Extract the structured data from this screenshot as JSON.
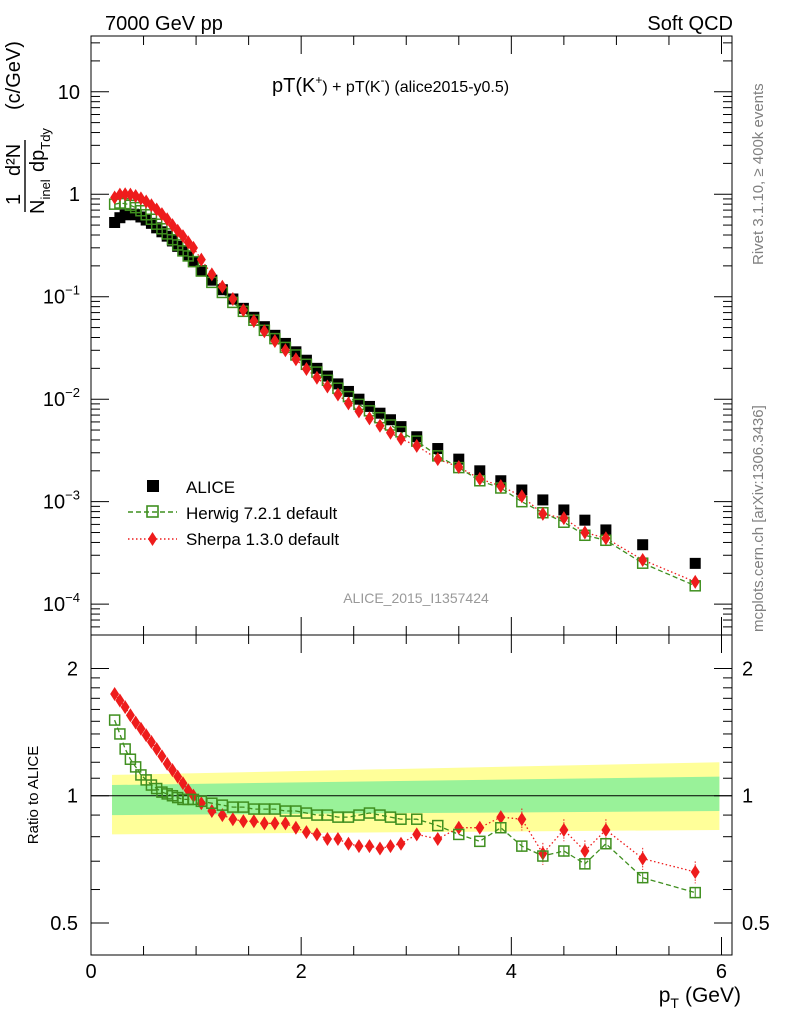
{
  "header": {
    "left": "7000 GeV pp",
    "right": "Soft QCD",
    "title": "pT(K",
    "title_sup1": "+",
    "title_mid": ") + pT(K",
    "title_sup2": "-",
    "title_end": ") (alice2015-y0.5)",
    "side_rivet": "Rivet 3.1.10, ≥ 400k events",
    "side_mcplots": "mcplots.cern.ch [arXiv:1306.3436]",
    "analysis_id": "ALICE_2015_I1357424"
  },
  "axes": {
    "main_ylabel_num": "1",
    "main_ylabel_den": "N",
    "main_ylabel_den_sub": "inel",
    "main_ylabel_mid": "d²N",
    "main_ylabel_dp": "dp",
    "main_ylabel_dp_sub": "Tdy",
    "main_ylabel_units": "(c/GeV)",
    "ratio_ylabel": "Ratio to ALICE",
    "xlabel_main": "p",
    "xlabel_sub": "T",
    "xlabel_units": "(GeV)",
    "main_yticks": [
      {
        "base": "10",
        "exp": "",
        "value": 10
      },
      {
        "base": "1",
        "exp": "",
        "value": 1
      },
      {
        "base": "10",
        "exp": "−1",
        "value": 0.1
      },
      {
        "base": "10",
        "exp": "−2",
        "value": 0.01
      },
      {
        "base": "10",
        "exp": "−3",
        "value": 0.001
      },
      {
        "base": "10",
        "exp": "−4",
        "value": 0.0001
      }
    ],
    "ratio_yticks": [
      "2",
      "1",
      "0.5"
    ],
    "xticks": [
      "0",
      "2",
      "4",
      "6"
    ]
  },
  "legend": {
    "alice": "ALICE",
    "herwig": "Herwig 7.2.1 default",
    "sherpa": "Sherpa 1.3.0 default"
  },
  "colors": {
    "alice": "#000000",
    "herwig": "#3f8f1f",
    "sherpa": "#ee1c1c",
    "band_outer": "#ffff99",
    "band_inner": "#99f299"
  },
  "chart_data": {
    "type": "scatter",
    "title": "pT(K+) + pT(K-) (alice2015-y0.5)",
    "xlabel": "pT (GeV)",
    "ylabel": "1/Ninel d2N/dpTdy (c/GeV)",
    "xlim": [
      0,
      6.1
    ],
    "ylim": [
      5e-05,
      35
    ],
    "yscale": "log",
    "ratio_ylim": [
      0.42,
      2.4
    ],
    "x": [
      0.225,
      0.275,
      0.325,
      0.375,
      0.425,
      0.475,
      0.525,
      0.575,
      0.625,
      0.675,
      0.725,
      0.775,
      0.825,
      0.875,
      0.925,
      0.975,
      1.05,
      1.15,
      1.25,
      1.35,
      1.45,
      1.55,
      1.65,
      1.75,
      1.85,
      1.95,
      2.05,
      2.15,
      2.25,
      2.35,
      2.45,
      2.55,
      2.65,
      2.75,
      2.85,
      2.95,
      3.1,
      3.3,
      3.5,
      3.7,
      3.9,
      4.1,
      4.3,
      4.5,
      4.7,
      4.9,
      5.25,
      5.75
    ],
    "series": [
      {
        "name": "ALICE",
        "values": [
          0.53,
          0.59,
          0.63,
          0.64,
          0.63,
          0.6,
          0.56,
          0.52,
          0.47,
          0.43,
          0.39,
          0.35,
          0.31,
          0.28,
          0.25,
          0.22,
          0.18,
          0.145,
          0.117,
          0.095,
          0.077,
          0.063,
          0.051,
          0.042,
          0.035,
          0.029,
          0.024,
          0.02,
          0.0168,
          0.0141,
          0.0119,
          0.01,
          0.0085,
          0.0073,
          0.0063,
          0.0054,
          0.0043,
          0.0033,
          0.0026,
          0.002,
          0.0016,
          0.0013,
          0.00104,
          0.00083,
          0.00066,
          0.00053,
          0.00038,
          0.00025
        ]
      },
      {
        "name": "Herwig 7.2.1 default",
        "values": [
          0.8,
          0.82,
          0.81,
          0.78,
          0.74,
          0.69,
          0.63,
          0.57,
          0.51,
          0.46,
          0.41,
          0.36,
          0.32,
          0.28,
          0.25,
          0.22,
          0.178,
          0.138,
          0.11,
          0.088,
          0.072,
          0.059,
          0.047,
          0.039,
          0.032,
          0.027,
          0.0219,
          0.0184,
          0.0153,
          0.0128,
          0.0106,
          0.0089,
          0.0077,
          0.0066,
          0.0056,
          0.0048,
          0.0039,
          0.0028,
          0.00215,
          0.0016,
          0.00136,
          0.001,
          0.00078,
          0.00063,
          0.00047,
          0.00042,
          0.000251,
          0.000151
        ]
      },
      {
        "name": "Sherpa 1.3.0 default",
        "values": [
          0.93,
          0.99,
          1.0,
          0.99,
          0.96,
          0.91,
          0.85,
          0.78,
          0.71,
          0.64,
          0.57,
          0.5,
          0.44,
          0.39,
          0.34,
          0.3,
          0.23,
          0.165,
          0.125,
          0.095,
          0.074,
          0.058,
          0.046,
          0.037,
          0.03,
          0.0245,
          0.0197,
          0.0162,
          0.0133,
          0.0111,
          0.0091,
          0.0076,
          0.0065,
          0.0055,
          0.0047,
          0.0041,
          0.0035,
          0.0026,
          0.00218,
          0.00167,
          0.00142,
          0.00113,
          0.00076,
          0.00069,
          0.0005,
          0.00044,
          0.00027,
          0.000165
        ]
      }
    ],
    "ratio": {
      "Herwig 7.2.1 default": [
        1.51,
        1.4,
        1.29,
        1.22,
        1.17,
        1.12,
        1.09,
        1.06,
        1.04,
        1.02,
        1.01,
        1.0,
        0.99,
        0.98,
        0.98,
        0.98,
        0.97,
        0.96,
        0.95,
        0.94,
        0.94,
        0.93,
        0.93,
        0.93,
        0.92,
        0.92,
        0.91,
        0.9,
        0.9,
        0.89,
        0.89,
        0.9,
        0.91,
        0.9,
        0.89,
        0.88,
        0.88,
        0.85,
        0.81,
        0.78,
        0.84,
        0.76,
        0.72,
        0.74,
        0.69,
        0.77,
        0.64,
        0.59
      ],
      "Sherpa 1.3.0 default": [
        1.74,
        1.68,
        1.62,
        1.55,
        1.49,
        1.44,
        1.39,
        1.34,
        1.29,
        1.24,
        1.19,
        1.15,
        1.11,
        1.07,
        1.03,
        1.0,
        0.96,
        0.92,
        0.9,
        0.88,
        0.87,
        0.87,
        0.86,
        0.86,
        0.86,
        0.84,
        0.82,
        0.81,
        0.79,
        0.79,
        0.77,
        0.76,
        0.76,
        0.75,
        0.76,
        0.77,
        0.81,
        0.79,
        0.84,
        0.84,
        0.89,
        0.88,
        0.73,
        0.83,
        0.74,
        0.83,
        0.71,
        0.66
      ]
    },
    "band_outer": {
      "x": [
        0.2,
        5.98
      ],
      "lower": [
        0.81,
        0.83
      ],
      "upper": [
        1.12,
        1.2
      ]
    },
    "band_inner": {
      "x": [
        0.2,
        5.98
      ],
      "lower": [
        0.9,
        0.92
      ],
      "upper": [
        1.06,
        1.11
      ]
    }
  }
}
